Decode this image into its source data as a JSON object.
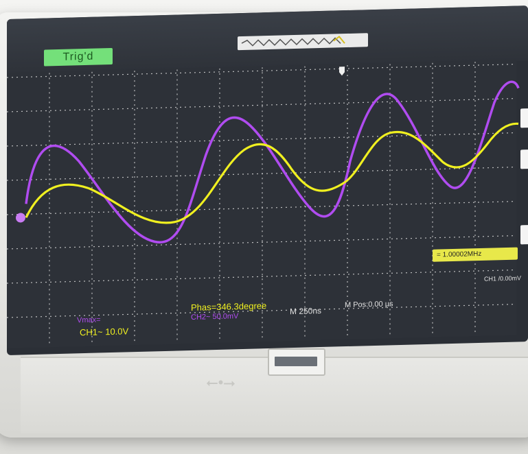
{
  "screen": {
    "trigger_status": "Trig'd",
    "phase_readout": "Phas=346.3degree",
    "timebase": "M 250ns",
    "mpos": "M Pos:0.00 µs",
    "ch1_scale": "CH1~ 10.0V",
    "ch2_scale": "CH2~ 50.0mV",
    "vmax_readout": "Vmax=",
    "frequency": "= 1.00002MHz",
    "ch_bottom_right": "CH1 /0.00mV"
  },
  "colors": {
    "ch1_trace": "#f0f020",
    "ch2_trace": "#b04cf0",
    "grid": "#d8d8d8",
    "screen_bg": "#2b2f36",
    "trig_label_bg": "#74e07a"
  },
  "icons": {
    "usb_symbol": "usb-icon",
    "trigger_marker": "trigger-position-icon"
  }
}
